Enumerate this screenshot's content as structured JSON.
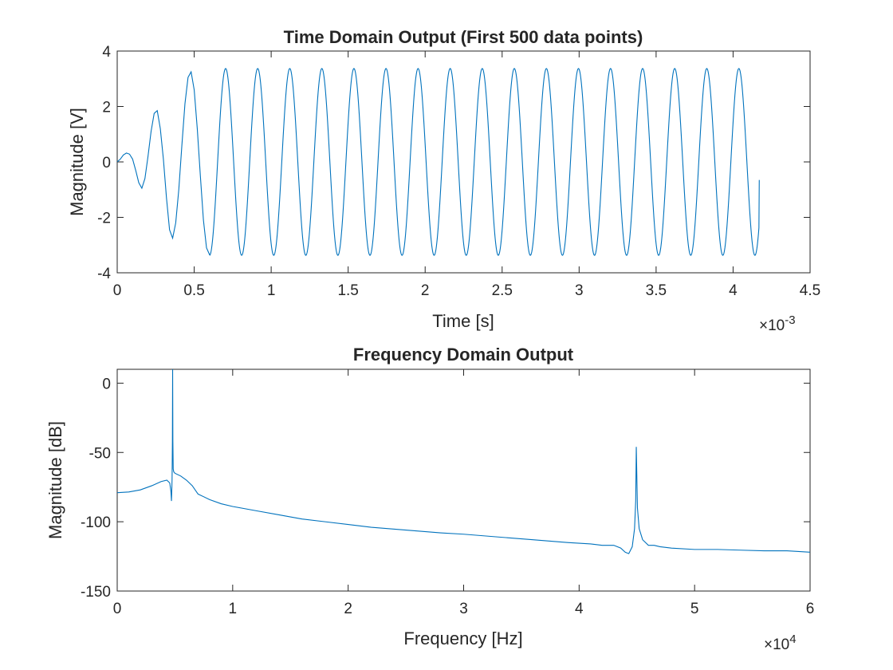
{
  "colors": {
    "series": "#0072bd",
    "axes": "#262626"
  },
  "chart_data": [
    {
      "type": "line",
      "title": "Time Domain Output (First 500 data points)",
      "xlabel": "Time [s]",
      "ylabel": "Magnitude [V]",
      "xlim": [
        0,
        0.0045
      ],
      "ylim": [
        -4,
        4
      ],
      "x_ticks": [
        0,
        0.0005,
        0.001,
        0.0015,
        0.002,
        0.0025,
        0.003,
        0.0035,
        0.004,
        0.0045
      ],
      "x_tick_labels": [
        "0",
        "0.5",
        "1",
        "1.5",
        "2",
        "2.5",
        "3",
        "3.5",
        "4",
        "4.5"
      ],
      "y_ticks": [
        -4,
        -2,
        0,
        2,
        4
      ],
      "y_tick_labels": [
        "-4",
        "-2",
        "0",
        "2",
        "4"
      ],
      "x_exponent_base": "×10",
      "x_exponent_power": "-3",
      "grid": false,
      "series": [
        {
          "description": "sinusoid ~4.8 kHz with start-up transient, last sample ~ -0.65 V",
          "x": [
            0,
            2e-05,
            4e-05,
            6e-05,
            8e-05,
            0.0001,
            0.00012,
            0.00014,
            0.00016,
            0.00018,
            0.0002,
            0.00022,
            0.00024,
            0.00026,
            0.00028,
            0.0003,
            0.00032,
            0.00034,
            0.00036,
            0.00038,
            0.0004,
            0.00042,
            0.00044,
            0.00046,
            0.00048,
            0.0005,
            0.00052,
            0.00054,
            0.00056,
            0.00058,
            0.0006
          ],
          "y": [
            0,
            0.1,
            0.25,
            0.32,
            0.28,
            0.1,
            -0.3,
            -0.75,
            -0.95,
            -0.6,
            0.2,
            1.1,
            1.75,
            1.85,
            1.2,
            0.1,
            -1.3,
            -2.45,
            -2.75,
            -2.2,
            -1.0,
            0.6,
            2.1,
            3.05,
            3.25,
            2.6,
            1.2,
            -0.5,
            -2.1,
            -3.1,
            -3.35
          ]
        }
      ],
      "steady_state": {
        "amplitude": 3.37,
        "frequency_hz": 4800,
        "t_end": 0.00417,
        "y_end": -0.65
      }
    },
    {
      "type": "line",
      "title": "Frequency Domain Output",
      "xlabel": "Frequency [Hz]",
      "ylabel": "Magnitude [dB]",
      "xlim": [
        0,
        60000
      ],
      "ylim": [
        -150,
        10
      ],
      "x_ticks": [
        0,
        10000,
        20000,
        30000,
        40000,
        50000,
        60000
      ],
      "x_tick_labels": [
        "0",
        "1",
        "2",
        "3",
        "4",
        "5",
        "6"
      ],
      "y_ticks": [
        -150,
        -100,
        -50,
        0
      ],
      "y_tick_labels": [
        "-150",
        "-100",
        "-50",
        "0"
      ],
      "x_exponent_base": "×10",
      "x_exponent_power": "4",
      "grid": false,
      "series": [
        {
          "x": [
            0,
            1000,
            2000,
            3000,
            3800,
            4300,
            4550,
            4650,
            4700,
            4750,
            4780,
            4800,
            4820,
            4850,
            4900,
            5000,
            5500,
            6000,
            6500,
            7000,
            8000,
            9000,
            10000,
            12000,
            14000,
            16000,
            18000,
            20000,
            22000,
            25000,
            28000,
            30000,
            33000,
            36000,
            39000,
            41000,
            42000,
            43000,
            43600,
            44000,
            44300,
            44600,
            44800,
            44900,
            44950,
            45050,
            45200,
            45500,
            46000,
            46500,
            47000,
            48000,
            50000,
            52000,
            54000,
            56000,
            58000,
            60000
          ],
          "y": [
            -79,
            -78.5,
            -77,
            -74,
            -71,
            -70,
            -72,
            -78,
            -85,
            -70,
            -42,
            10,
            -42,
            -62,
            -64,
            -65,
            -67,
            -70,
            -74,
            -80,
            -84,
            -87,
            -89,
            -92,
            -95,
            -98,
            -100,
            -102,
            -104,
            -106,
            -108,
            -109,
            -111,
            -113,
            -115,
            -116,
            -117,
            -117,
            -119,
            -122,
            -123,
            -118,
            -105,
            -85,
            -46,
            -90,
            -105,
            -113,
            -117,
            -117,
            -118,
            -119,
            -120,
            -120,
            -120.5,
            -121,
            -121,
            -122
          ]
        }
      ]
    }
  ]
}
